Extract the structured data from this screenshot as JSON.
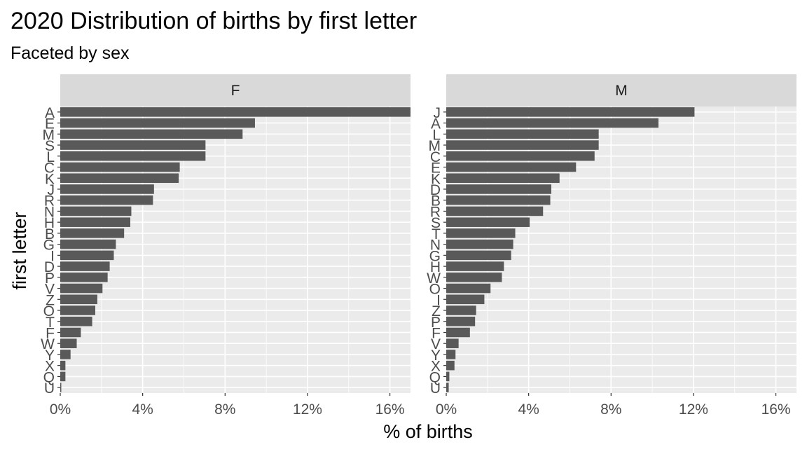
{
  "chart_data": {
    "type": "bar",
    "orientation": "horizontal",
    "title": "2020 Distribution of births by first letter",
    "subtitle": "Faceted by sex",
    "xlabel": "% of births",
    "ylabel": "first letter",
    "xlim": [
      0,
      17
    ],
    "x_ticks": [
      "0%",
      "4%",
      "8%",
      "12%",
      "16%"
    ],
    "x_tick_values": [
      0,
      4,
      8,
      12,
      16
    ],
    "grid": true,
    "bar_color": "#595959",
    "panel_background": "#ebebeb",
    "strip_background": "#d9d9d9",
    "facets": [
      {
        "strip": "F",
        "categories": [
          "A",
          "E",
          "M",
          "S",
          "L",
          "C",
          "K",
          "J",
          "R",
          "N",
          "H",
          "B",
          "G",
          "I",
          "D",
          "P",
          "V",
          "Z",
          "O",
          "T",
          "F",
          "W",
          "Y",
          "X",
          "Q",
          "U"
        ],
        "values": [
          17.0,
          9.45,
          8.85,
          7.05,
          7.05,
          5.8,
          5.75,
          4.55,
          4.5,
          3.45,
          3.4,
          3.1,
          2.7,
          2.6,
          2.4,
          2.3,
          2.05,
          1.8,
          1.7,
          1.55,
          1.0,
          0.8,
          0.5,
          0.25,
          0.25,
          0.05
        ]
      },
      {
        "strip": "M",
        "categories": [
          "J",
          "A",
          "L",
          "M",
          "C",
          "E",
          "K",
          "D",
          "B",
          "R",
          "S",
          "T",
          "N",
          "G",
          "H",
          "W",
          "O",
          "I",
          "Z",
          "P",
          "F",
          "V",
          "Y",
          "X",
          "Q",
          "U"
        ],
        "values": [
          12.05,
          10.3,
          7.4,
          7.4,
          7.2,
          6.3,
          5.5,
          5.1,
          5.05,
          4.7,
          4.05,
          3.35,
          3.25,
          3.15,
          2.8,
          2.7,
          2.15,
          1.85,
          1.45,
          1.4,
          1.15,
          0.6,
          0.45,
          0.4,
          0.15,
          0.12
        ]
      }
    ]
  }
}
